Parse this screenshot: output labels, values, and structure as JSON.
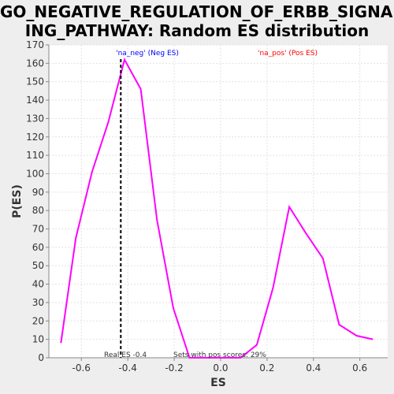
{
  "chart_data": {
    "type": "line",
    "title_line1": "GO_NEGATIVE_REGULATION_OF_ERBB_SIGNAL",
    "title_line2": "ING_PATHWAY: Random ES distribution",
    "xlabel": "ES",
    "ylabel": "P(ES)",
    "xlim": [
      -0.74,
      0.72
    ],
    "ylim": [
      0,
      170
    ],
    "xticks": [
      -0.6,
      -0.4,
      -0.2,
      0.0,
      0.2,
      0.4,
      0.6
    ],
    "xtick_labels": [
      "-0.6",
      "-0.4",
      "-0.2",
      "0.0",
      "0.2",
      "0.4",
      "0.6"
    ],
    "yticks": [
      0,
      10,
      20,
      30,
      40,
      50,
      60,
      70,
      80,
      90,
      100,
      110,
      120,
      130,
      140,
      150,
      160,
      170
    ],
    "grid": true,
    "series": [
      {
        "color": "#ff00ff",
        "x": [
          -0.688,
          -0.624,
          -0.554,
          -0.484,
          -0.414,
          -0.344,
          -0.274,
          -0.204,
          -0.134,
          -0.064,
          0.006,
          0.086,
          0.156,
          0.226,
          0.296,
          0.366,
          0.441,
          0.511,
          0.586,
          0.656
        ],
        "y": [
          8,
          65,
          101,
          128,
          162,
          146,
          75,
          27,
          0,
          0,
          0,
          0,
          7,
          38,
          82,
          68,
          54,
          18,
          12,
          10
        ]
      }
    ],
    "real_es_line": {
      "x": -0.43,
      "color": "#000000"
    },
    "annotations": {
      "neg_label": "'na_neg' (Neg ES)",
      "neg_color": "#0000ff",
      "pos_label": "'na_pos' (Pos ES)",
      "pos_color": "#ff0000",
      "real_es": "Real ES -0.4",
      "pos_scores": "Sets with pos scores: 29%"
    }
  }
}
